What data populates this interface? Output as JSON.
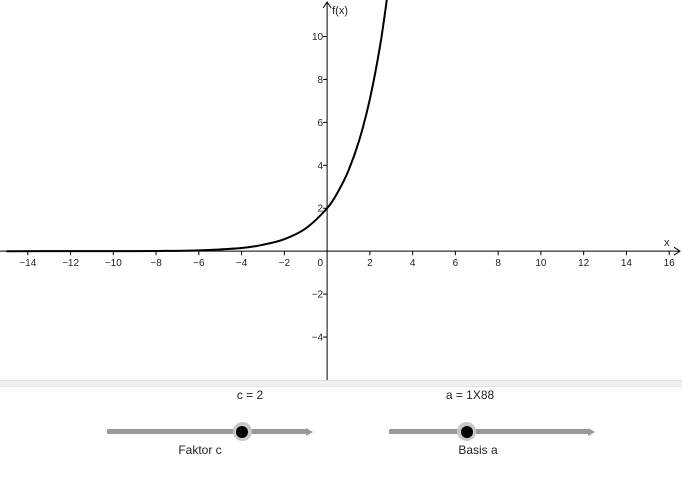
{
  "chart_data": {
    "type": "line",
    "title": "",
    "xlabel": "x",
    "ylabel": "f(x)",
    "xlim": [
      -15.3,
      16.6
    ],
    "ylim": [
      -6,
      11.7
    ],
    "x_ticks": [
      "−14",
      "−12",
      "−10",
      "−8",
      "−6",
      "−4",
      "−2",
      "0",
      "2",
      "4",
      "6",
      "8",
      "10",
      "12",
      "14",
      "16"
    ],
    "y_ticks": [
      "−4",
      "−2",
      "2",
      "4",
      "6",
      "8",
      "10"
    ],
    "grid": false,
    "series": [
      {
        "color": "#000000",
        "points": [
          [
            -15,
            0.0
          ],
          [
            -12,
            0.001
          ],
          [
            -10,
            0.002
          ],
          [
            -8,
            0.01
          ],
          [
            -6,
            0.04
          ],
          [
            -4,
            0.15
          ],
          [
            -3,
            0.3
          ],
          [
            -2,
            0.56
          ],
          [
            -1,
            1.06
          ],
          [
            0,
            2.0
          ],
          [
            0.5,
            2.75
          ],
          [
            1,
            3.76
          ],
          [
            1.5,
            5.16
          ],
          [
            2,
            7.08
          ],
          [
            2.5,
            9.7
          ],
          [
            2.9,
            12.5
          ]
        ]
      }
    ]
  },
  "sliders": [
    {
      "caption": "c = 2",
      "name": "Faktor c",
      "value_fraction": 0.68
    },
    {
      "caption": "a = 1X88",
      "name": "Basis a",
      "value_fraction": 0.39
    }
  ]
}
